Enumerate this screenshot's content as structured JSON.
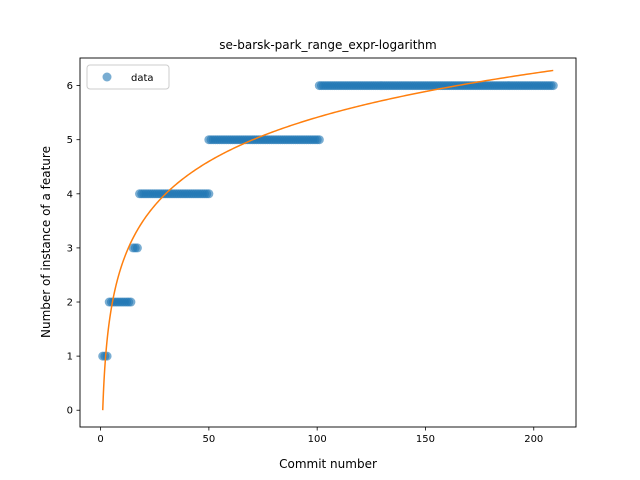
{
  "chart_data": {
    "type": "scatter",
    "title": "se-barsk-park_range_expr-logarithm",
    "xlabel": "Commit number",
    "ylabel": "Number of instance of a feature",
    "xlim": [
      -9.5,
      219.5
    ],
    "ylim": [
      -0.31,
      6.51
    ],
    "xticks": [
      0,
      50,
      100,
      150,
      200
    ],
    "yticks": [
      0,
      1,
      2,
      3,
      4,
      5,
      6
    ],
    "grid": false,
    "legend_position": "upper-left",
    "series": [
      {
        "name": "data",
        "kind": "points",
        "color": "#1f77b4",
        "alpha": 0.6,
        "segments": [
          {
            "x_from": 1,
            "x_to": 3,
            "y": 1
          },
          {
            "x_from": 4,
            "x_to": 14,
            "y": 2
          },
          {
            "x_from": 15,
            "x_to": 17,
            "y": 3
          },
          {
            "x_from": 18,
            "x_to": 50,
            "y": 4
          },
          {
            "x_from": 50,
            "x_to": 101,
            "y": 5
          },
          {
            "x_from": 101,
            "x_to": 209,
            "y": 6
          }
        ]
      },
      {
        "kind": "fit",
        "color": "#ff7f0e",
        "model": "logarithmic",
        "x_range": [
          1,
          209
        ],
        "y_at_start": 0,
        "y_at_end": 6.28
      }
    ]
  }
}
